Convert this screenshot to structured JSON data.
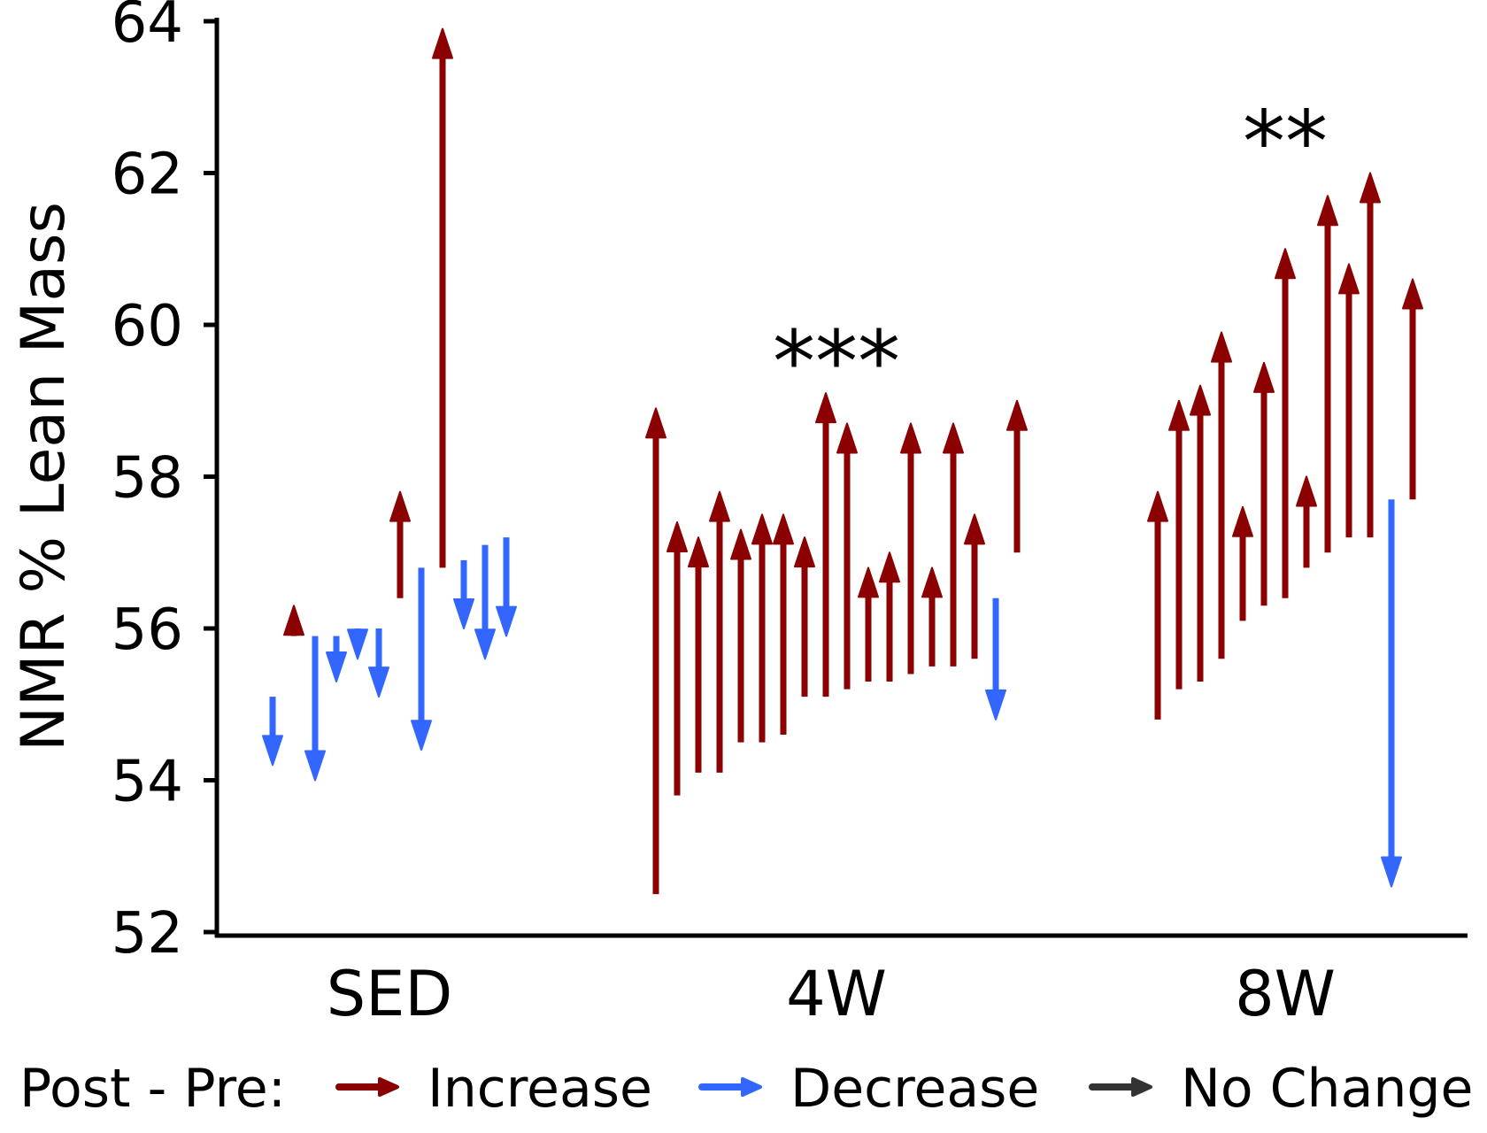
{
  "chart_data": {
    "type": "arrow-plot",
    "ylabel": "NMR % Lean Mass",
    "xlabel": "",
    "ylim": [
      52,
      64
    ],
    "yticks": [
      52,
      54,
      56,
      58,
      60,
      62,
      64
    ],
    "groups": [
      {
        "label": "SED",
        "significance": "",
        "arrows": [
          {
            "pre": 55.1,
            "post": 54.2
          },
          {
            "pre": 55.9,
            "post": 56.3
          },
          {
            "pre": 55.9,
            "post": 54.0
          },
          {
            "pre": 55.9,
            "post": 55.3
          },
          {
            "pre": 56.0,
            "post": 55.6
          },
          {
            "pre": 56.0,
            "post": 55.1
          },
          {
            "pre": 56.4,
            "post": 57.8
          },
          {
            "pre": 56.8,
            "post": 54.4
          },
          {
            "pre": 56.8,
            "post": 63.9
          },
          {
            "pre": 56.9,
            "post": 56.0
          },
          {
            "pre": 57.1,
            "post": 55.6
          },
          {
            "pre": 57.2,
            "post": 55.9
          }
        ]
      },
      {
        "label": "4W",
        "significance": "***",
        "arrows": [
          {
            "pre": 52.5,
            "post": 58.9
          },
          {
            "pre": 53.8,
            "post": 57.4
          },
          {
            "pre": 54.1,
            "post": 57.2
          },
          {
            "pre": 54.1,
            "post": 57.8
          },
          {
            "pre": 54.5,
            "post": 57.3
          },
          {
            "pre": 54.5,
            "post": 57.5
          },
          {
            "pre": 54.6,
            "post": 57.5
          },
          {
            "pre": 55.1,
            "post": 57.2
          },
          {
            "pre": 55.1,
            "post": 59.1
          },
          {
            "pre": 55.2,
            "post": 58.7
          },
          {
            "pre": 55.3,
            "post": 56.8
          },
          {
            "pre": 55.3,
            "post": 57.0
          },
          {
            "pre": 55.4,
            "post": 58.7
          },
          {
            "pre": 55.5,
            "post": 56.8
          },
          {
            "pre": 55.5,
            "post": 58.7
          },
          {
            "pre": 55.6,
            "post": 57.5
          },
          {
            "pre": 56.4,
            "post": 54.8
          },
          {
            "pre": 57.0,
            "post": 59.0
          }
        ]
      },
      {
        "label": "8W",
        "significance": "**",
        "arrows": [
          {
            "pre": 54.8,
            "post": 57.8
          },
          {
            "pre": 55.2,
            "post": 59.0
          },
          {
            "pre": 55.3,
            "post": 59.2
          },
          {
            "pre": 55.6,
            "post": 59.9
          },
          {
            "pre": 56.1,
            "post": 57.6
          },
          {
            "pre": 56.3,
            "post": 59.5
          },
          {
            "pre": 56.4,
            "post": 61.0
          },
          {
            "pre": 56.8,
            "post": 58.0
          },
          {
            "pre": 57.0,
            "post": 61.7
          },
          {
            "pre": 57.2,
            "post": 60.8
          },
          {
            "pre": 57.2,
            "post": 62.0
          },
          {
            "pre": 57.7,
            "post": 52.6
          },
          {
            "pre": 57.7,
            "post": 60.6
          }
        ]
      }
    ],
    "legend": {
      "title": "Post - Pre:",
      "placement": "bottom",
      "entries": [
        {
          "label": "Increase",
          "color": "#8b0000"
        },
        {
          "label": "Decrease",
          "color": "#3366ff"
        },
        {
          "label": "No Change",
          "color": "#333333"
        }
      ]
    },
    "colors": {
      "increase": "#8b0000",
      "decrease": "#3366ff",
      "nochange": "#333333",
      "axis": "#000000"
    }
  }
}
